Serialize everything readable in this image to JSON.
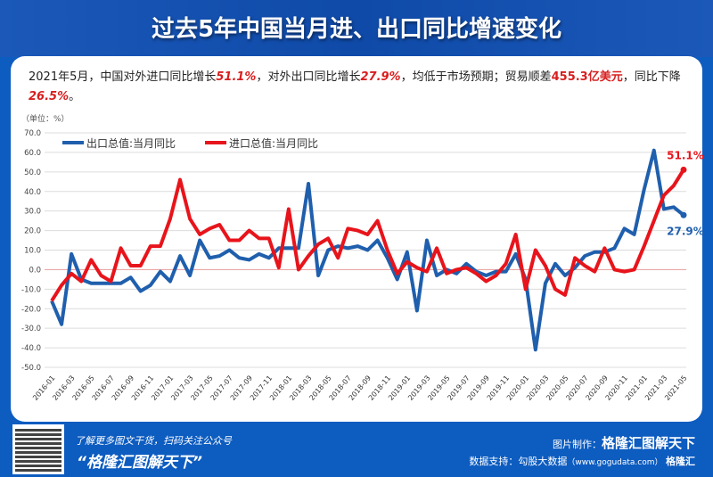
{
  "header": {
    "title": "过去5年中国当月进、出口同比增速变化"
  },
  "description": {
    "p1": "2021年5月，中国对外进口同比增长",
    "v1": "51.1%",
    "p2": "，对外出口同比增长",
    "v2": "27.9%",
    "p3": "，均低于市场预期；贸易顺差",
    "v3": "455.3亿美元",
    "p4": "，同比下降",
    "v4": "26.5%",
    "p5": "。"
  },
  "footer": {
    "tagline": "了解更多图文干货，扫码关注公众号",
    "account": "“格隆汇图解天下”",
    "maker_label": "图片制作：",
    "maker": "格隆汇图解天下",
    "source_label": "数据支持：勾股大数据",
    "source_url": "（www.gogudata.com）",
    "brand": "格隆汇"
  },
  "chart_data": {
    "type": "line",
    "title": "过去5年中国当月进、出口同比增速变化",
    "unit_label": "（单位：%）",
    "ylim": [
      -50,
      70
    ],
    "yticks": [
      "70.0",
      "60.0",
      "50.0",
      "40.0",
      "30.0",
      "20.0",
      "10.0",
      "0.0",
      "-10.0",
      "-20.0",
      "-30.0",
      "-40.0",
      "-50.0"
    ],
    "xticks": [
      "2016-01",
      "2016-03",
      "2016-05",
      "2016-07",
      "2016-09",
      "2016-11",
      "2017-01",
      "2017-03",
      "2017-05",
      "2017-07",
      "2017-09",
      "2017-11",
      "2018-01",
      "2018-03",
      "2018-05",
      "2018-07",
      "2018-09",
      "2018-11",
      "2019-01",
      "2019-03",
      "2019-05",
      "2019-07",
      "2019-09",
      "2019-11",
      "2020-01",
      "2020-03",
      "2020-05",
      "2020-07",
      "2020-09",
      "2020-11",
      "2021-01",
      "2021-03",
      "2021-05"
    ],
    "x_start": "2016-01",
    "x_end": "2021-05",
    "legend": "top-left",
    "series": [
      {
        "name": "出口总值:当月同比",
        "color": "#1f5fad",
        "end_label": "27.9%",
        "values": [
          -16,
          -28,
          8,
          -5,
          -7,
          -7,
          -7,
          -7,
          -4,
          -11,
          -8,
          -1,
          -6,
          7,
          -3,
          15,
          6,
          7,
          10,
          6,
          5,
          8,
          6,
          11,
          11,
          11,
          44,
          -3,
          10,
          12,
          11,
          12,
          10,
          15,
          6,
          -5,
          9,
          -21,
          15,
          -3,
          0,
          -2,
          3,
          -1,
          -3,
          -1,
          -1,
          8,
          -5,
          -41,
          -7,
          3,
          -3,
          1,
          7,
          9,
          9,
          11,
          21,
          18,
          41,
          61,
          31,
          32,
          27.9
        ]
      },
      {
        "name": "进口总值:当月同比",
        "color": "#e8141b",
        "end_label": "51.1%",
        "values": [
          -16,
          -8,
          -2,
          -6,
          5,
          -3,
          -6,
          11,
          2,
          2,
          12,
          12,
          26,
          46,
          26,
          18,
          21,
          23,
          15,
          15,
          20,
          16,
          16,
          1,
          31,
          0,
          7,
          13,
          16,
          6,
          21,
          20,
          18,
          25,
          10,
          -2,
          4,
          1,
          -1,
          11,
          -2,
          0,
          1,
          -2,
          -6,
          -3,
          3,
          18,
          -10,
          10,
          2,
          -10,
          -13,
          6,
          2,
          -1,
          11,
          0,
          -1,
          0,
          12,
          25,
          38,
          43,
          51.1
        ]
      }
    ]
  }
}
